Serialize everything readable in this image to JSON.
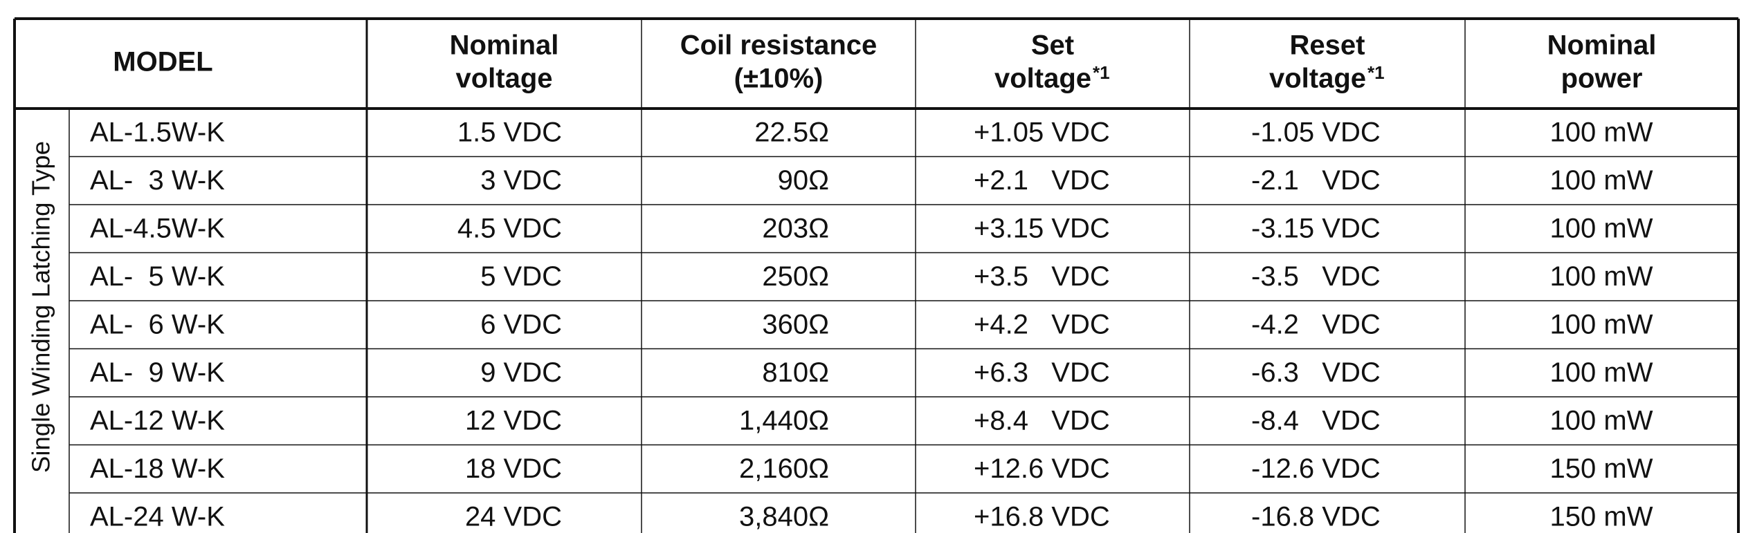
{
  "table": {
    "header": {
      "model": "MODEL",
      "columns": [
        {
          "lines": [
            "Nominal",
            "voltage"
          ]
        },
        {
          "lines": [
            "Coil resistance",
            "(±10%)"
          ]
        },
        {
          "lines": [
            "Set",
            "voltage"
          ],
          "note": "*1"
        },
        {
          "lines": [
            "Reset",
            "voltage"
          ],
          "note": "*1"
        },
        {
          "lines": [
            "Nominal",
            "power"
          ]
        }
      ]
    },
    "group": "Single Winding Latching Type",
    "rows": [
      [
        "AL-1.5W-K",
        "1.5 VDC",
        "22.5Ω",
        "+1.05 VDC",
        "-1.05 VDC",
        "100 mW"
      ],
      [
        "AL-  3 W-K",
        "3 VDC",
        "90Ω",
        "+2.1   VDC",
        "-2.1   VDC",
        "100 mW"
      ],
      [
        "AL-4.5W-K",
        "4.5 VDC",
        "203Ω",
        "+3.15 VDC",
        "-3.15 VDC",
        "100 mW"
      ],
      [
        "AL-  5 W-K",
        "5 VDC",
        "250Ω",
        "+3.5   VDC",
        "-3.5   VDC",
        "100 mW"
      ],
      [
        "AL-  6 W-K",
        "6 VDC",
        "360Ω",
        "+4.2   VDC",
        "-4.2   VDC",
        "100 mW"
      ],
      [
        "AL-  9 W-K",
        "9 VDC",
        "810Ω",
        "+6.3   VDC",
        "-6.3   VDC",
        "100 mW"
      ],
      [
        "AL-12 W-K",
        "12 VDC",
        "1,440Ω",
        "+8.4   VDC",
        "-8.4   VDC",
        "100 mW"
      ],
      [
        "AL-18 W-K",
        "18 VDC",
        "2,160Ω",
        "+12.6 VDC",
        "-12.6 VDC",
        "150 mW"
      ],
      [
        "AL-24 W-K",
        "24 VDC",
        "3,840Ω",
        "+16.8 VDC",
        "-16.8 VDC",
        "150 mW"
      ]
    ]
  }
}
